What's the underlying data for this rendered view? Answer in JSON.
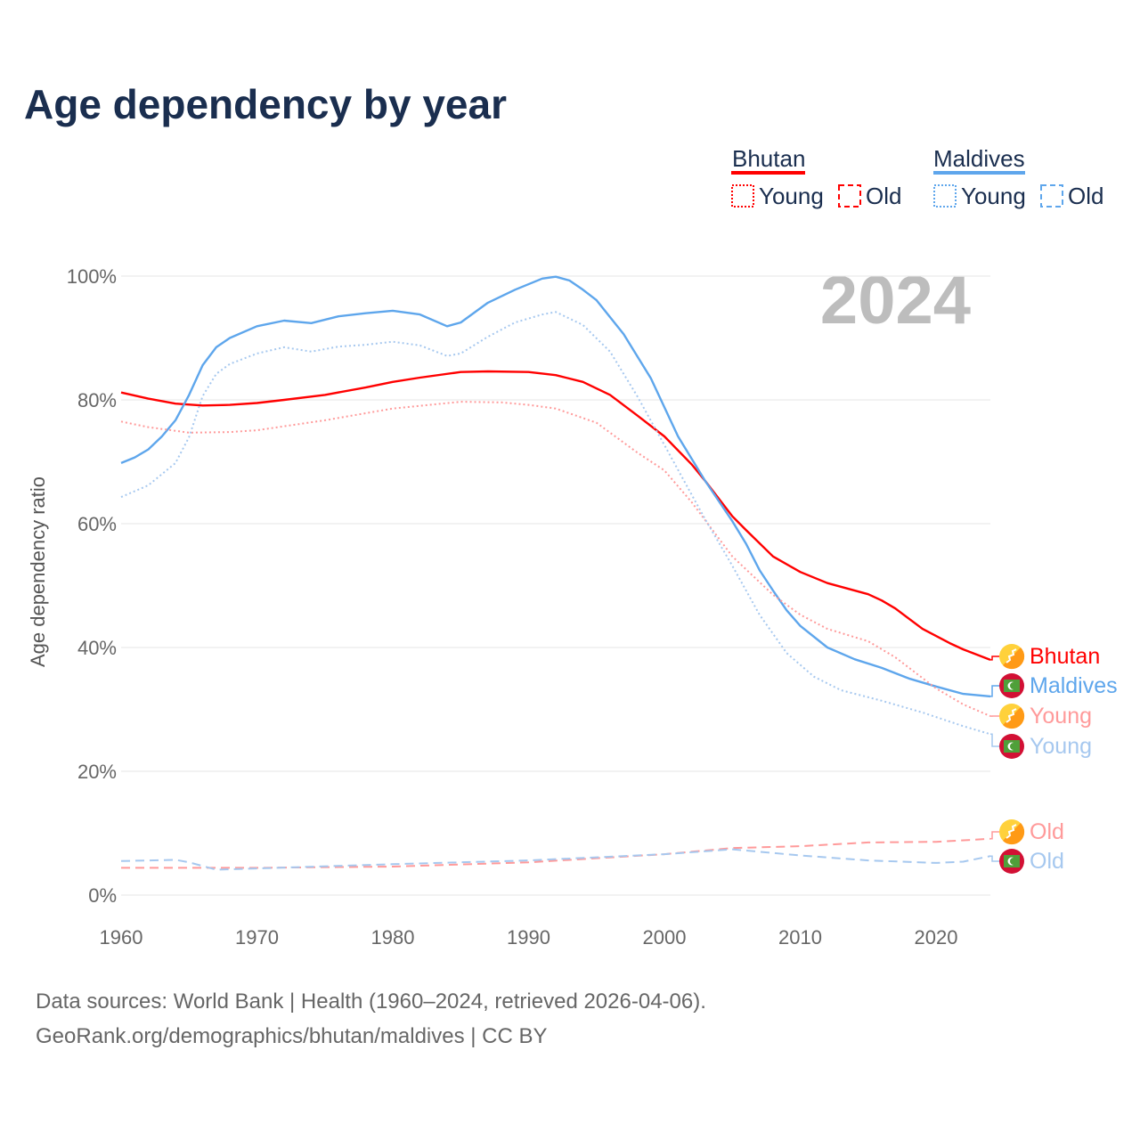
{
  "chart_data": {
    "type": "line",
    "title": "Age dependency by year",
    "xlabel": "",
    "ylabel": "Age dependency ratio",
    "xlim": [
      1960,
      2024
    ],
    "ylim": [
      0,
      100
    ],
    "x_ticks": [
      "1960",
      "1970",
      "1980",
      "1990",
      "2000",
      "2010",
      "2020"
    ],
    "y_ticks": [
      "0%",
      "20%",
      "40%",
      "60%",
      "80%",
      "100%"
    ],
    "year_display": "2024",
    "legend": {
      "groups": [
        {
          "name": "Bhutan",
          "color": "#ff0000",
          "items": [
            "Young",
            "Old"
          ]
        },
        {
          "name": "Maldives",
          "color": "#5ea6ec",
          "items": [
            "Young",
            "Old"
          ]
        }
      ]
    },
    "series": [
      {
        "name": "Bhutan",
        "label": "Bhutan",
        "style": "solid",
        "color": "#ff0000",
        "points": [
          [
            1960,
            81.2
          ],
          [
            1962,
            80.2
          ],
          [
            1964,
            79.4
          ],
          [
            1966,
            79.1
          ],
          [
            1968,
            79.2
          ],
          [
            1970,
            79.5
          ],
          [
            1972,
            80.0
          ],
          [
            1975,
            80.8
          ],
          [
            1978,
            82.0
          ],
          [
            1980,
            82.9
          ],
          [
            1982,
            83.6
          ],
          [
            1985,
            84.5
          ],
          [
            1987,
            84.6
          ],
          [
            1990,
            84.5
          ],
          [
            1992,
            84.0
          ],
          [
            1994,
            82.9
          ],
          [
            1996,
            80.8
          ],
          [
            1998,
            77.5
          ],
          [
            2000,
            74.1
          ],
          [
            2002,
            69.6
          ],
          [
            2003,
            66.9
          ],
          [
            2005,
            61.2
          ],
          [
            2006,
            59.0
          ],
          [
            2008,
            54.7
          ],
          [
            2010,
            52.2
          ],
          [
            2012,
            50.4
          ],
          [
            2015,
            48.6
          ],
          [
            2016,
            47.6
          ],
          [
            2017,
            46.3
          ],
          [
            2019,
            43.0
          ],
          [
            2021,
            40.7
          ],
          [
            2022,
            39.7
          ],
          [
            2024,
            38.0
          ]
        ]
      },
      {
        "name": "Maldives",
        "label": "Maldives",
        "style": "solid",
        "color": "#5ea6ec",
        "points": [
          [
            1960,
            69.8
          ],
          [
            1961,
            70.7
          ],
          [
            1962,
            72.0
          ],
          [
            1963,
            74.1
          ],
          [
            1964,
            76.7
          ],
          [
            1965,
            80.8
          ],
          [
            1966,
            85.6
          ],
          [
            1967,
            88.5
          ],
          [
            1968,
            90.0
          ],
          [
            1970,
            91.9
          ],
          [
            1972,
            92.8
          ],
          [
            1974,
            92.4
          ],
          [
            1976,
            93.5
          ],
          [
            1978,
            94.0
          ],
          [
            1980,
            94.4
          ],
          [
            1982,
            93.8
          ],
          [
            1984,
            91.9
          ],
          [
            1985,
            92.5
          ],
          [
            1987,
            95.7
          ],
          [
            1989,
            97.8
          ],
          [
            1991,
            99.6
          ],
          [
            1992,
            99.9
          ],
          [
            1993,
            99.3
          ],
          [
            1994,
            97.8
          ],
          [
            1995,
            96.1
          ],
          [
            1997,
            90.6
          ],
          [
            1999,
            83.5
          ],
          [
            2001,
            74.1
          ],
          [
            2003,
            66.9
          ],
          [
            2005,
            60.4
          ],
          [
            2006,
            56.8
          ],
          [
            2007,
            52.5
          ],
          [
            2008,
            49.2
          ],
          [
            2009,
            46.0
          ],
          [
            2010,
            43.5
          ],
          [
            2012,
            40.0
          ],
          [
            2014,
            38.1
          ],
          [
            2016,
            36.7
          ],
          [
            2018,
            35.0
          ],
          [
            2020,
            33.7
          ],
          [
            2022,
            32.5
          ],
          [
            2024,
            32.1
          ]
        ]
      },
      {
        "name": "Bhutan Young",
        "label": "Young",
        "style": "dotted",
        "color": "#ff9a9a",
        "points": [
          [
            1960,
            76.5
          ],
          [
            1962,
            75.6
          ],
          [
            1965,
            74.7
          ],
          [
            1968,
            74.8
          ],
          [
            1970,
            75.1
          ],
          [
            1975,
            76.7
          ],
          [
            1980,
            78.6
          ],
          [
            1985,
            79.7
          ],
          [
            1988,
            79.6
          ],
          [
            1990,
            79.2
          ],
          [
            1992,
            78.6
          ],
          [
            1995,
            76.3
          ],
          [
            1998,
            71.5
          ],
          [
            2000,
            68.6
          ],
          [
            2002,
            63.5
          ],
          [
            2005,
            54.7
          ],
          [
            2008,
            48.5
          ],
          [
            2010,
            45.3
          ],
          [
            2012,
            43.0
          ],
          [
            2015,
            41.0
          ],
          [
            2017,
            38.4
          ],
          [
            2020,
            33.4
          ],
          [
            2022,
            30.8
          ],
          [
            2024,
            28.9
          ]
        ]
      },
      {
        "name": "Maldives Young",
        "label": "Young",
        "style": "dotted",
        "color": "#a6c8ef",
        "points": [
          [
            1960,
            64.3
          ],
          [
            1962,
            66.2
          ],
          [
            1964,
            69.8
          ],
          [
            1965,
            74.0
          ],
          [
            1966,
            80.6
          ],
          [
            1967,
            84.2
          ],
          [
            1968,
            85.8
          ],
          [
            1970,
            87.5
          ],
          [
            1972,
            88.5
          ],
          [
            1974,
            87.8
          ],
          [
            1976,
            88.6
          ],
          [
            1978,
            88.9
          ],
          [
            1980,
            89.4
          ],
          [
            1982,
            88.8
          ],
          [
            1984,
            87.1
          ],
          [
            1985,
            87.5
          ],
          [
            1987,
            90.2
          ],
          [
            1989,
            92.5
          ],
          [
            1991,
            93.8
          ],
          [
            1992,
            94.2
          ],
          [
            1994,
            92.1
          ],
          [
            1996,
            87.8
          ],
          [
            1998,
            80.6
          ],
          [
            2000,
            72.7
          ],
          [
            2003,
            60.7
          ],
          [
            2005,
            53.2
          ],
          [
            2007,
            45.3
          ],
          [
            2009,
            39.1
          ],
          [
            2011,
            35.3
          ],
          [
            2013,
            33.1
          ],
          [
            2016,
            31.4
          ],
          [
            2019,
            29.5
          ],
          [
            2022,
            27.3
          ],
          [
            2024,
            26.0
          ]
        ]
      },
      {
        "name": "Bhutan Old",
        "label": "Old",
        "style": "dashed",
        "color": "#ff9a9a",
        "points": [
          [
            1960,
            4.4
          ],
          [
            1970,
            4.4
          ],
          [
            1980,
            4.6
          ],
          [
            1990,
            5.3
          ],
          [
            2000,
            6.6
          ],
          [
            2005,
            7.6
          ],
          [
            2010,
            7.9
          ],
          [
            2015,
            8.5
          ],
          [
            2020,
            8.6
          ],
          [
            2024,
            9.1
          ]
        ]
      },
      {
        "name": "Maldives Old",
        "label": "Old",
        "style": "dashed",
        "color": "#a6c8ef",
        "points": [
          [
            1960,
            5.5
          ],
          [
            1964,
            5.7
          ],
          [
            1965,
            5.3
          ],
          [
            1967,
            4.1
          ],
          [
            1970,
            4.3
          ],
          [
            1980,
            5.0
          ],
          [
            1990,
            5.6
          ],
          [
            2000,
            6.6
          ],
          [
            2005,
            7.4
          ],
          [
            2010,
            6.4
          ],
          [
            2015,
            5.6
          ],
          [
            2020,
            5.2
          ],
          [
            2022,
            5.4
          ],
          [
            2024,
            6.3
          ]
        ]
      }
    ]
  },
  "source": {
    "line1": "Data sources: World Bank | Health (1960–2024, retrieved 2026-04-06).",
    "line2": "GeoRank.org/demographics/bhutan/maldives | CC BY"
  }
}
